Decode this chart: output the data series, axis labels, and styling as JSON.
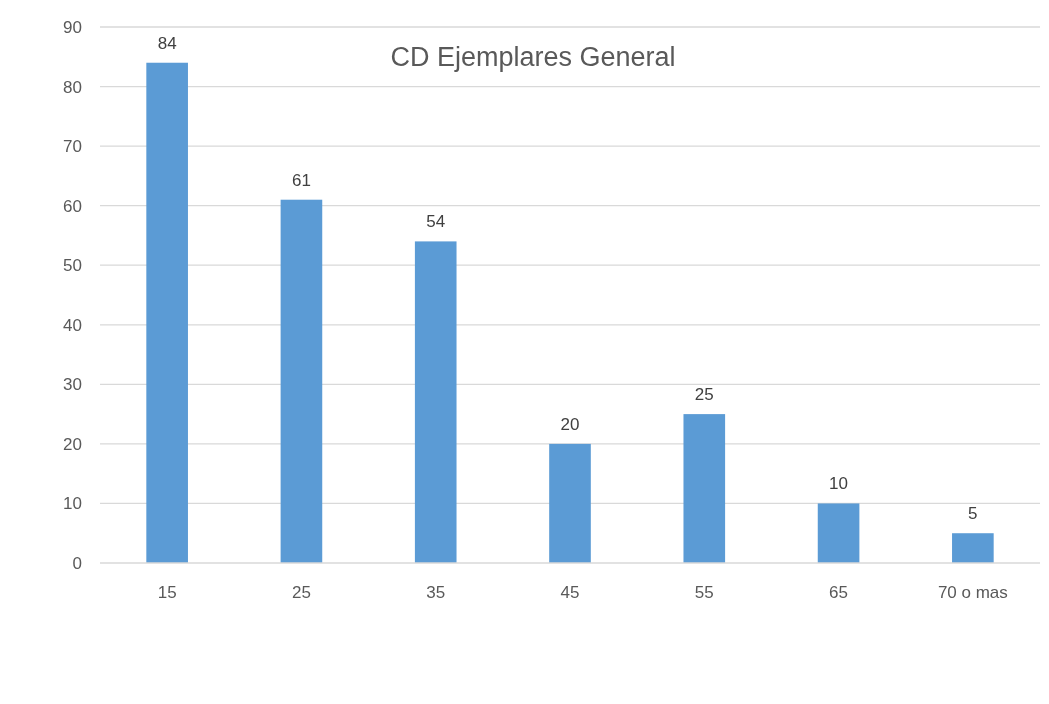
{
  "chart_data": {
    "type": "bar",
    "title": "CD Ejemplares General",
    "categories": [
      "15",
      "25",
      "35",
      "45",
      "55",
      "65",
      "70 o mas"
    ],
    "values": [
      84,
      61,
      54,
      20,
      25,
      10,
      5
    ],
    "color": "#5b9bd5",
    "ylim": [
      0,
      90
    ],
    "yticks": [
      0,
      10,
      20,
      30,
      40,
      50,
      60,
      70,
      80,
      90
    ],
    "grid": "y",
    "data_labels": true
  }
}
